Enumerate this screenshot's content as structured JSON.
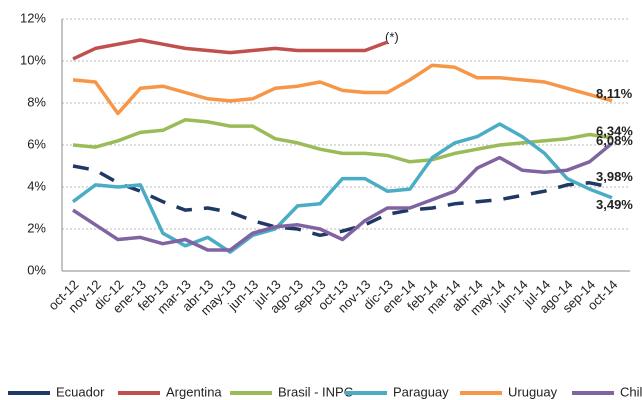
{
  "chart_data": {
    "type": "line",
    "annotation": "(*)",
    "categories": [
      "oct-12",
      "nov-12",
      "dic-12",
      "ene-13",
      "feb-13",
      "mar-13",
      "abr-13",
      "may-13",
      "jun-13",
      "jul-13",
      "ago-13",
      "sep-13",
      "oct-13",
      "nov-13",
      "dic-13",
      "ene-14",
      "feb-14",
      "mar-14",
      "abr-14",
      "may-14",
      "jun-14",
      "jul-14",
      "ago-14",
      "sep-14",
      "oct-14"
    ],
    "ylim": [
      0,
      12
    ],
    "yticks": [
      {
        "value": 0,
        "label": "0%"
      },
      {
        "value": 2,
        "label": "2%"
      },
      {
        "value": 4,
        "label": "4%"
      },
      {
        "value": 6,
        "label": "6%"
      },
      {
        "value": 8,
        "label": "8%"
      },
      {
        "value": 10,
        "label": "10%"
      },
      {
        "value": 12,
        "label": "12%"
      }
    ],
    "grid": true,
    "series": [
      {
        "name": "Ecuador",
        "color": "#1f3864",
        "dashed": true,
        "values": [
          5.0,
          4.8,
          4.2,
          3.8,
          3.3,
          2.9,
          3.0,
          2.8,
          2.4,
          2.1,
          2.0,
          1.7,
          1.9,
          2.2,
          2.7,
          2.9,
          3.0,
          3.2,
          3.3,
          3.4,
          3.6,
          3.8,
          4.1,
          4.2,
          3.98
        ],
        "value_labels": [
          null,
          null,
          null,
          null,
          null,
          null,
          null,
          null,
          null,
          null,
          null,
          null,
          null,
          null,
          null,
          null,
          null,
          null,
          null,
          null,
          null,
          null,
          null,
          null,
          "3,98%"
        ]
      },
      {
        "name": "Argentina",
        "color": "#c0504d",
        "values": [
          10.1,
          10.6,
          10.8,
          11.0,
          10.8,
          10.6,
          10.5,
          10.4,
          10.5,
          10.6,
          10.5,
          10.5,
          10.5,
          10.5,
          10.9,
          null,
          null,
          null,
          null,
          null,
          null,
          null,
          null,
          null,
          null
        ]
      },
      {
        "name": "Brasil - INPC",
        "color": "#9bbb59",
        "values": [
          6.0,
          5.9,
          6.2,
          6.6,
          6.7,
          7.2,
          7.1,
          6.9,
          6.9,
          6.3,
          6.1,
          5.8,
          5.6,
          5.6,
          5.5,
          5.2,
          5.3,
          5.6,
          5.8,
          6.0,
          6.1,
          6.2,
          6.3,
          6.5,
          6.34
        ],
        "value_labels": [
          null,
          null,
          null,
          null,
          null,
          null,
          null,
          null,
          null,
          null,
          null,
          null,
          null,
          null,
          null,
          null,
          null,
          null,
          null,
          null,
          null,
          null,
          null,
          null,
          "6,34%"
        ]
      },
      {
        "name": "Paraguay",
        "color": "#4bacc6",
        "values": [
          3.3,
          4.1,
          4.0,
          4.1,
          1.8,
          1.2,
          1.6,
          0.9,
          1.7,
          2.0,
          3.1,
          3.2,
          4.4,
          4.4,
          3.8,
          3.9,
          5.4,
          6.1,
          6.4,
          7.0,
          6.4,
          5.6,
          4.4,
          3.9,
          3.49
        ],
        "value_labels": [
          null,
          null,
          null,
          null,
          null,
          null,
          null,
          null,
          null,
          null,
          null,
          null,
          null,
          null,
          null,
          null,
          null,
          null,
          null,
          null,
          null,
          null,
          null,
          null,
          "3,49%"
        ]
      },
      {
        "name": "Uruguay",
        "color": "#f79646",
        "values": [
          9.1,
          9.0,
          7.5,
          8.7,
          8.8,
          8.5,
          8.2,
          8.1,
          8.2,
          8.7,
          8.8,
          9.0,
          8.6,
          8.5,
          8.5,
          9.1,
          9.8,
          9.7,
          9.2,
          9.2,
          9.1,
          9.0,
          8.7,
          8.4,
          8.11
        ],
        "value_labels": [
          null,
          null,
          null,
          null,
          null,
          null,
          null,
          null,
          null,
          null,
          null,
          null,
          null,
          null,
          null,
          null,
          null,
          null,
          null,
          null,
          null,
          null,
          null,
          null,
          "8,11%"
        ]
      },
      {
        "name": "Chile",
        "color": "#8064a2",
        "values": [
          2.9,
          2.2,
          1.5,
          1.6,
          1.3,
          1.5,
          1.0,
          1.0,
          1.8,
          2.1,
          2.2,
          2.0,
          1.5,
          2.4,
          3.0,
          3.0,
          3.4,
          3.8,
          4.9,
          5.4,
          4.8,
          4.7,
          4.8,
          5.2,
          6.08
        ],
        "value_labels": [
          null,
          null,
          null,
          null,
          null,
          null,
          null,
          null,
          null,
          null,
          null,
          null,
          null,
          null,
          null,
          null,
          null,
          null,
          null,
          null,
          null,
          null,
          null,
          null,
          "6,08%"
        ]
      }
    ]
  }
}
